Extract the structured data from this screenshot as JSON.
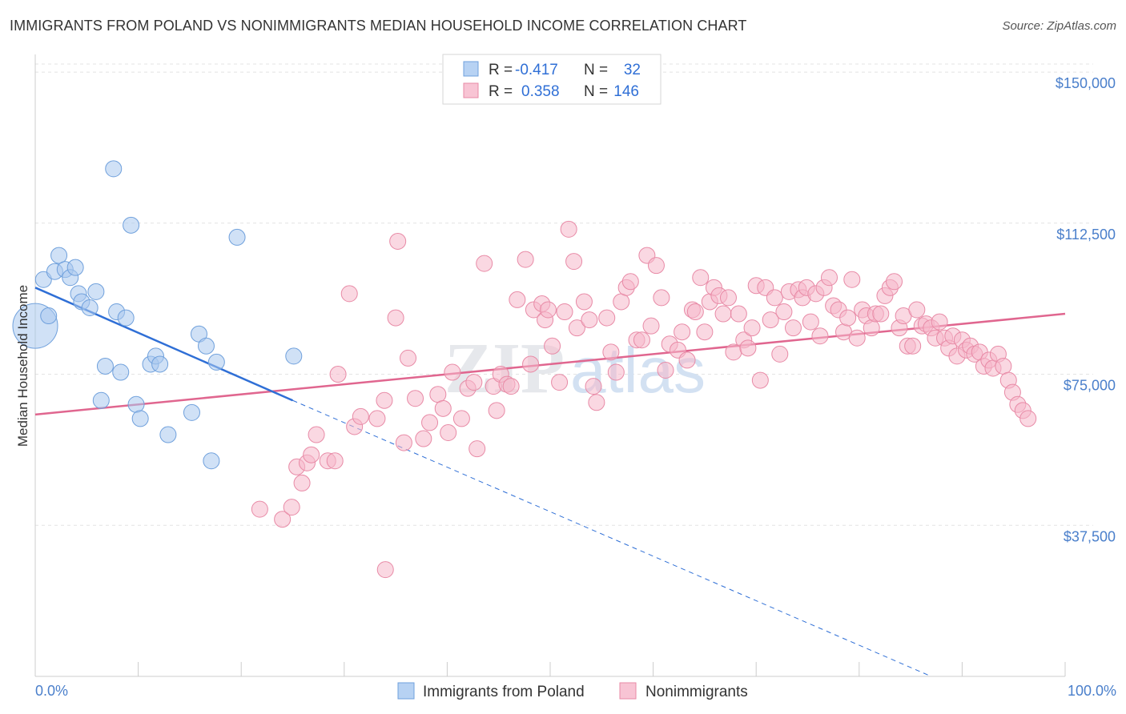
{
  "title": "IMMIGRANTS FROM POLAND VS NONIMMIGRANTS MEDIAN HOUSEHOLD INCOME CORRELATION CHART",
  "source": "Source: ZipAtlas.com",
  "watermark": {
    "zip": "ZIP",
    "atlas": "atlas"
  },
  "chart_data": {
    "type": "scatter",
    "title": "IMMIGRANTS FROM POLAND VS NONIMMIGRANTS MEDIAN HOUSEHOLD INCOME CORRELATION CHART",
    "xlabel": "",
    "ylabel": "Median Household Income",
    "xlim": [
      0,
      100
    ],
    "ylim": [
      0,
      152000
    ],
    "x_tick_labels": [
      "0.0%",
      "100.0%"
    ],
    "y_ticks": [
      37500,
      75000,
      112500,
      150000
    ],
    "y_tick_labels": [
      "$37,500",
      "$75,000",
      "$112,500",
      "$150,000"
    ],
    "grid": true,
    "legend_position": "bottom",
    "stats_box": [
      {
        "r_label": "R =",
        "r": "-0.417",
        "n_label": "N =",
        "n": "32"
      },
      {
        "r_label": "R =",
        "r": "0.358",
        "n_label": "N =",
        "n": "146"
      }
    ],
    "series": [
      {
        "name": "Immigrants from Poland",
        "color": "#a9c8ef",
        "stroke": "#6fa0dc",
        "trend_color": "#2f6fd6",
        "trend": {
          "x0": 0,
          "y0": 96500,
          "x1": 25,
          "y1": 68500,
          "x_dash_end": 87,
          "y_dash_end": 0
        },
        "points": [
          [
            0.0,
            87000,
            28
          ],
          [
            0.8,
            98500,
            10
          ],
          [
            1.3,
            89500,
            10
          ],
          [
            1.9,
            100500,
            10
          ],
          [
            2.3,
            104500,
            10
          ],
          [
            2.9,
            101000,
            10
          ],
          [
            3.4,
            99000,
            10
          ],
          [
            3.9,
            101500,
            10
          ],
          [
            4.2,
            95000,
            10
          ],
          [
            4.5,
            93000,
            10
          ],
          [
            5.3,
            91500,
            10
          ],
          [
            5.9,
            95500,
            10
          ],
          [
            6.4,
            68500,
            10
          ],
          [
            6.8,
            77000,
            10
          ],
          [
            7.6,
            126000,
            10
          ],
          [
            7.9,
            90500,
            10
          ],
          [
            8.3,
            75500,
            10
          ],
          [
            8.8,
            89000,
            10
          ],
          [
            9.3,
            112000,
            10
          ],
          [
            9.8,
            67500,
            10
          ],
          [
            10.2,
            64000,
            10
          ],
          [
            11.2,
            77500,
            10
          ],
          [
            11.7,
            79500,
            10
          ],
          [
            12.1,
            77500,
            10
          ],
          [
            12.9,
            60000,
            10
          ],
          [
            15.2,
            65500,
            10
          ],
          [
            15.9,
            85000,
            10
          ],
          [
            16.6,
            82000,
            10
          ],
          [
            17.1,
            53500,
            10
          ],
          [
            17.6,
            78000,
            10
          ],
          [
            19.6,
            109000,
            10
          ],
          [
            25.1,
            79500,
            10
          ]
        ]
      },
      {
        "name": "Nonimmigrants",
        "color": "#f6b8cb",
        "stroke": "#e88aa6",
        "trend_color": "#e0668f",
        "trend": {
          "x0": 0,
          "y0": 65000,
          "x1": 100,
          "y1": 90000
        },
        "points": [
          [
            21.8,
            41500,
            10
          ],
          [
            24.0,
            39000,
            10
          ],
          [
            24.9,
            42000,
            10
          ],
          [
            25.4,
            52000,
            10
          ],
          [
            25.9,
            48000,
            10
          ],
          [
            26.4,
            53000,
            10
          ],
          [
            26.8,
            55000,
            10
          ],
          [
            27.3,
            60000,
            10
          ],
          [
            28.4,
            53500,
            10
          ],
          [
            29.1,
            53500,
            10
          ],
          [
            29.4,
            75000,
            10
          ],
          [
            30.5,
            95000,
            10
          ],
          [
            31.0,
            62000,
            10
          ],
          [
            31.6,
            64500,
            10
          ],
          [
            33.2,
            64000,
            10
          ],
          [
            33.9,
            68500,
            10
          ],
          [
            34.0,
            26500,
            10
          ],
          [
            35.0,
            89000,
            10
          ],
          [
            35.2,
            108000,
            10
          ],
          [
            35.8,
            58000,
            10
          ],
          [
            36.2,
            79000,
            10
          ],
          [
            36.9,
            69000,
            10
          ],
          [
            37.7,
            59000,
            10
          ],
          [
            38.3,
            63000,
            10
          ],
          [
            39.1,
            70000,
            10
          ],
          [
            39.6,
            66500,
            10
          ],
          [
            40.1,
            60500,
            10
          ],
          [
            40.5,
            75500,
            10
          ],
          [
            41.4,
            64000,
            10
          ],
          [
            42.0,
            71500,
            10
          ],
          [
            42.6,
            73000,
            10
          ],
          [
            42.9,
            56500,
            10
          ],
          [
            43.6,
            102500,
            10
          ],
          [
            44.5,
            72000,
            10
          ],
          [
            44.8,
            66000,
            10
          ],
          [
            45.2,
            75000,
            10
          ],
          [
            45.8,
            72500,
            10
          ],
          [
            46.2,
            72000,
            10
          ],
          [
            46.8,
            93500,
            10
          ],
          [
            47.6,
            103500,
            10
          ],
          [
            48.1,
            77500,
            10
          ],
          [
            48.4,
            91000,
            10
          ],
          [
            49.2,
            92500,
            10
          ],
          [
            49.5,
            88500,
            10
          ],
          [
            49.8,
            91000,
            10
          ],
          [
            50.2,
            82000,
            10
          ],
          [
            50.9,
            73000,
            10
          ],
          [
            51.4,
            90500,
            10
          ],
          [
            51.8,
            111000,
            10
          ],
          [
            52.3,
            103000,
            10
          ],
          [
            52.6,
            86500,
            10
          ],
          [
            53.3,
            93000,
            10
          ],
          [
            53.8,
            88500,
            10
          ],
          [
            54.2,
            72000,
            10
          ],
          [
            54.5,
            68000,
            10
          ],
          [
            55.5,
            89000,
            10
          ],
          [
            55.9,
            80500,
            10
          ],
          [
            56.4,
            75500,
            10
          ],
          [
            56.9,
            93000,
            10
          ],
          [
            57.4,
            96500,
            10
          ],
          [
            57.8,
            98000,
            10
          ],
          [
            58.4,
            83500,
            10
          ],
          [
            58.9,
            83500,
            10
          ],
          [
            59.4,
            104500,
            10
          ],
          [
            59.8,
            87000,
            10
          ],
          [
            60.3,
            102000,
            10
          ],
          [
            60.8,
            94000,
            10
          ],
          [
            61.2,
            76000,
            10
          ],
          [
            61.6,
            82500,
            10
          ],
          [
            62.4,
            81000,
            10
          ],
          [
            62.8,
            85500,
            10
          ],
          [
            63.3,
            78500,
            10
          ],
          [
            63.8,
            91000,
            10
          ],
          [
            64.1,
            90500,
            10
          ],
          [
            64.6,
            99000,
            10
          ],
          [
            65.0,
            85500,
            10
          ],
          [
            65.5,
            93000,
            10
          ],
          [
            65.9,
            96500,
            10
          ],
          [
            66.4,
            94500,
            10
          ],
          [
            66.8,
            90000,
            10
          ],
          [
            67.3,
            94000,
            10
          ],
          [
            67.8,
            80500,
            10
          ],
          [
            68.3,
            90000,
            10
          ],
          [
            68.8,
            83500,
            10
          ],
          [
            69.2,
            81500,
            10
          ],
          [
            69.6,
            86500,
            10
          ],
          [
            70.0,
            97000,
            10
          ],
          [
            70.4,
            73500,
            10
          ],
          [
            70.9,
            96500,
            10
          ],
          [
            71.4,
            88500,
            10
          ],
          [
            71.8,
            94000,
            10
          ],
          [
            72.3,
            80000,
            10
          ],
          [
            72.7,
            90500,
            10
          ],
          [
            73.2,
            95500,
            10
          ],
          [
            73.6,
            86500,
            10
          ],
          [
            74.1,
            96000,
            10
          ],
          [
            74.5,
            94000,
            10
          ],
          [
            74.9,
            96500,
            10
          ],
          [
            75.3,
            88000,
            10
          ],
          [
            75.8,
            95000,
            10
          ],
          [
            76.2,
            84500,
            10
          ],
          [
            76.6,
            96500,
            10
          ],
          [
            77.1,
            99000,
            10
          ],
          [
            77.5,
            92000,
            10
          ],
          [
            78.0,
            91000,
            10
          ],
          [
            78.5,
            85500,
            10
          ],
          [
            78.9,
            89000,
            10
          ],
          [
            79.3,
            98500,
            10
          ],
          [
            79.8,
            84000,
            10
          ],
          [
            80.3,
            91000,
            10
          ],
          [
            80.7,
            89500,
            10
          ],
          [
            81.2,
            86500,
            10
          ],
          [
            81.6,
            90000,
            10
          ],
          [
            82.1,
            90000,
            10
          ],
          [
            82.5,
            94500,
            10
          ],
          [
            83.0,
            96500,
            10
          ],
          [
            83.4,
            98000,
            10
          ],
          [
            83.9,
            86500,
            10
          ],
          [
            84.3,
            89500,
            10
          ],
          [
            84.7,
            82000,
            10
          ],
          [
            85.2,
            82000,
            10
          ],
          [
            85.6,
            91000,
            10
          ],
          [
            86.1,
            87000,
            10
          ],
          [
            86.5,
            87500,
            10
          ],
          [
            87.0,
            86500,
            10
          ],
          [
            87.4,
            84000,
            10
          ],
          [
            87.8,
            88000,
            10
          ],
          [
            88.3,
            84000,
            10
          ],
          [
            88.7,
            81500,
            10
          ],
          [
            89.1,
            84500,
            10
          ],
          [
            89.5,
            79500,
            10
          ],
          [
            90.0,
            83500,
            10
          ],
          [
            90.4,
            81000,
            10
          ],
          [
            90.8,
            82000,
            10
          ],
          [
            91.2,
            80000,
            10
          ],
          [
            91.7,
            80500,
            10
          ],
          [
            92.1,
            77000,
            10
          ],
          [
            92.6,
            78500,
            10
          ],
          [
            93.0,
            76500,
            10
          ],
          [
            93.5,
            80000,
            10
          ],
          [
            94.0,
            77000,
            10
          ],
          [
            94.5,
            73500,
            10
          ],
          [
            94.9,
            70500,
            10
          ],
          [
            95.4,
            67500,
            10
          ],
          [
            95.9,
            66000,
            10
          ],
          [
            96.4,
            64000,
            10
          ]
        ]
      }
    ]
  }
}
